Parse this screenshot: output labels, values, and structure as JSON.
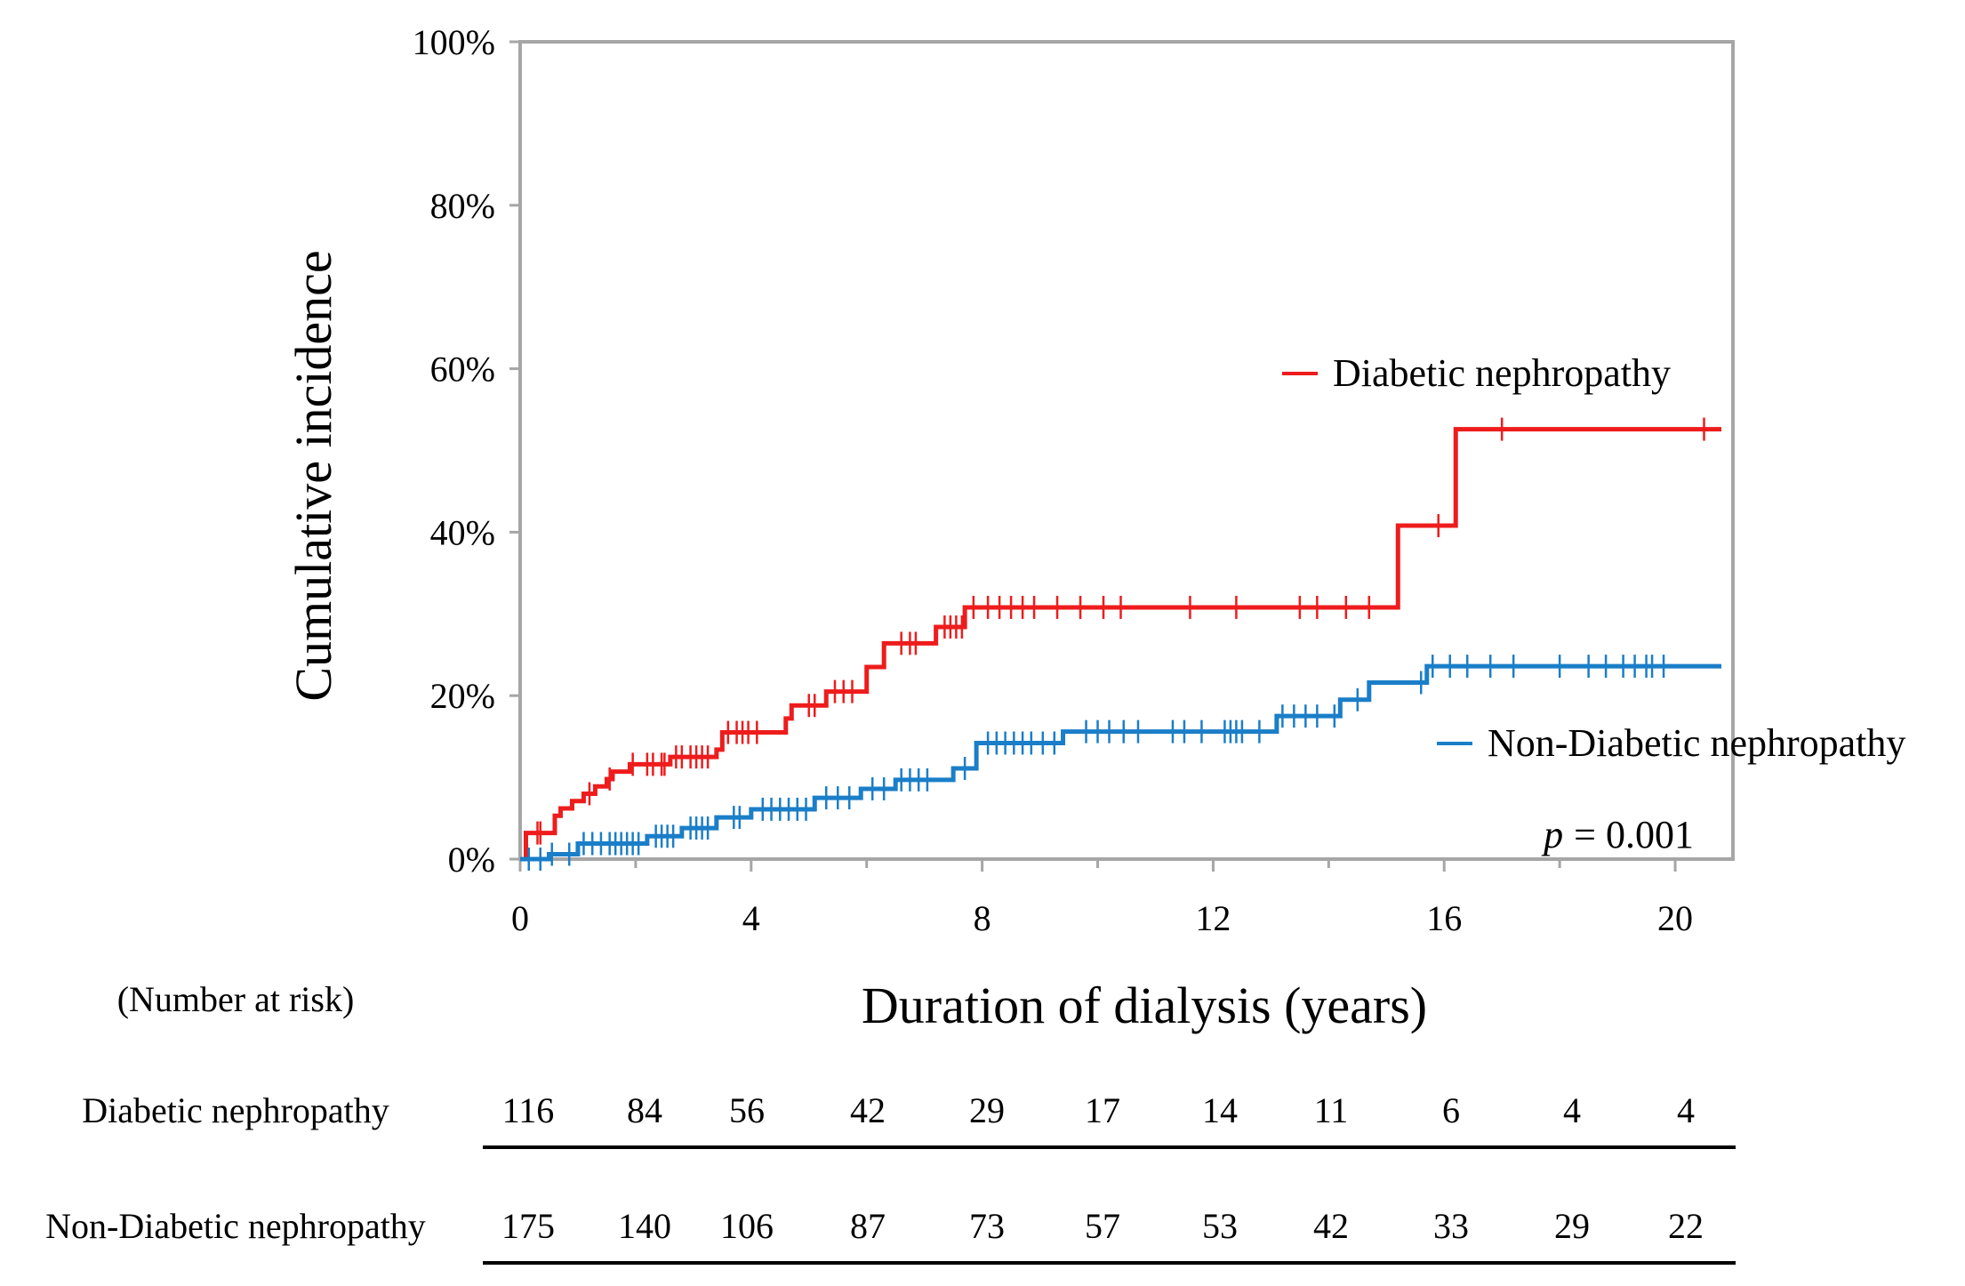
{
  "chart_data": {
    "type": "line",
    "subtype": "kaplan-meier-cumulative-incidence",
    "title": "",
    "xlabel": "Duration of dialysis (years)",
    "ylabel": "Cumulative incidence",
    "xlim": [
      0,
      21
    ],
    "ylim": [
      0,
      100
    ],
    "x_ticks": [
      0,
      4,
      8,
      12,
      16,
      20
    ],
    "x_tick_labels": [
      "0",
      "4",
      "8",
      "12",
      "16",
      "20"
    ],
    "x_minor_ticks": [
      2,
      6,
      10,
      14,
      18
    ],
    "y_ticks": [
      0,
      20,
      40,
      60,
      80,
      100
    ],
    "y_tick_labels": [
      "0%",
      "20%",
      "40%",
      "60%",
      "80%",
      "100%"
    ],
    "annotation": {
      "p_label": "p",
      "p_text": "= 0.001"
    },
    "series": [
      {
        "name": "Diabetic nephropathy",
        "color": "#ee1c1c",
        "legend_position": "right-middle",
        "steps": [
          [
            0,
            0
          ],
          [
            0.1,
            3.2
          ],
          [
            0.6,
            5.3
          ],
          [
            0.7,
            6.2
          ],
          [
            0.9,
            7.1
          ],
          [
            1.1,
            8.0
          ],
          [
            1.3,
            8.9
          ],
          [
            1.5,
            9.8
          ],
          [
            1.6,
            10.7
          ],
          [
            1.9,
            11.6
          ],
          [
            2.6,
            12.5
          ],
          [
            3.4,
            13.4
          ],
          [
            3.5,
            15.5
          ],
          [
            4.6,
            17.2
          ],
          [
            4.7,
            18.8
          ],
          [
            5.3,
            20.5
          ],
          [
            6.0,
            23.5
          ],
          [
            6.3,
            26.4
          ],
          [
            7.2,
            28.4
          ],
          [
            7.7,
            30.8
          ],
          [
            15.2,
            40.8
          ],
          [
            16.2,
            52.6
          ],
          [
            20.8,
            52.6
          ]
        ],
        "censor_times": [
          0.3,
          0.35,
          1.2,
          1.55,
          1.95,
          2.2,
          2.3,
          2.45,
          2.5,
          2.7,
          2.8,
          2.95,
          3.05,
          3.15,
          3.25,
          3.6,
          3.75,
          3.85,
          3.95,
          4.1,
          5.0,
          5.1,
          5.45,
          5.6,
          5.75,
          6.6,
          6.75,
          6.85,
          7.35,
          7.45,
          7.55,
          7.65,
          7.85,
          8.1,
          8.3,
          8.5,
          8.7,
          8.9,
          9.3,
          9.7,
          10.1,
          10.4,
          11.6,
          12.4,
          13.5,
          13.8,
          14.3,
          14.7,
          15.9,
          17.0,
          20.5
        ]
      },
      {
        "name": "Non-Diabetic nephropathy",
        "color": "#1a7ec8",
        "legend_position": "right-lower",
        "steps": [
          [
            0,
            0
          ],
          [
            0.5,
            0.6
          ],
          [
            1.0,
            1.9
          ],
          [
            2.2,
            2.8
          ],
          [
            2.8,
            3.8
          ],
          [
            3.4,
            5.1
          ],
          [
            4.0,
            6.1
          ],
          [
            5.1,
            7.5
          ],
          [
            5.9,
            8.6
          ],
          [
            6.5,
            9.7
          ],
          [
            7.5,
            11.1
          ],
          [
            7.9,
            14.2
          ],
          [
            9.4,
            15.6
          ],
          [
            13.1,
            17.5
          ],
          [
            14.2,
            19.5
          ],
          [
            14.7,
            21.6
          ],
          [
            15.7,
            23.6
          ],
          [
            20.8,
            23.6
          ]
        ],
        "censor_times": [
          0.15,
          0.35,
          0.55,
          0.85,
          1.1,
          1.25,
          1.4,
          1.55,
          1.65,
          1.75,
          1.85,
          1.95,
          2.05,
          2.35,
          2.45,
          2.55,
          2.65,
          2.95,
          3.05,
          3.15,
          3.25,
          3.7,
          3.8,
          4.2,
          4.35,
          4.5,
          4.65,
          4.8,
          4.95,
          5.3,
          5.5,
          5.7,
          6.1,
          6.3,
          6.6,
          6.75,
          6.9,
          7.05,
          7.7,
          8.1,
          8.25,
          8.4,
          8.55,
          8.7,
          8.85,
          9.05,
          9.25,
          9.8,
          10.0,
          10.2,
          10.45,
          10.7,
          11.3,
          11.5,
          11.8,
          12.2,
          12.3,
          12.4,
          12.5,
          12.8,
          13.2,
          13.4,
          13.6,
          13.8,
          14.1,
          14.5,
          15.6,
          15.8,
          16.1,
          16.4,
          16.8,
          17.2,
          18.0,
          18.5,
          18.8,
          19.1,
          19.3,
          19.5,
          19.6,
          19.8
        ]
      }
    ],
    "number_at_risk": {
      "heading": "(Number at risk)",
      "times": [
        0,
        2,
        4,
        6,
        8,
        10,
        12,
        14,
        16,
        18,
        20
      ],
      "rows": [
        {
          "label": "Diabetic nephropathy",
          "values": [
            "116",
            "84",
            "56",
            "42",
            "29",
            "17",
            "14",
            "11",
            "6",
            "4",
            "4"
          ]
        },
        {
          "label": "Non-Diabetic nephropathy",
          "values": [
            "175",
            "140",
            "106",
            "87",
            "73",
            "57",
            "53",
            "42",
            "33",
            "29",
            "22"
          ]
        }
      ]
    }
  }
}
